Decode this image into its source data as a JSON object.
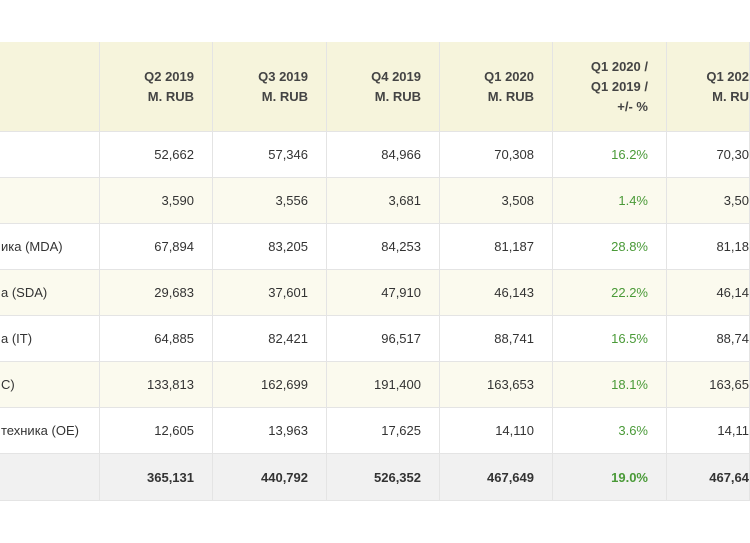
{
  "table": {
    "header": [
      "Q2 2019\nM. RUB",
      "Q3 2019\nM. RUB",
      "Q4 2019\nM. RUB",
      "Q1 2020\nM. RUB",
      "Q1 2020 /\nQ1 2019 /\n+/- %",
      "Q1 202\nM. RU"
    ],
    "rows": [
      {
        "cells": [
          "52,662",
          "57,346",
          "84,966",
          "70,308",
          "16.2%",
          "70,30"
        ]
      },
      {
        "cells": [
          "3,590",
          "3,556",
          "3,681",
          "3,508",
          "1.4%",
          "3,50"
        ]
      },
      {
        "label": "ика (MDA)",
        "cells": [
          "67,894",
          "83,205",
          "84,253",
          "81,187",
          "28.8%",
          "81,18"
        ]
      },
      {
        "label": "а (SDA)",
        "cells": [
          "29,683",
          "37,601",
          "47,910",
          "46,143",
          "22.2%",
          "46,14"
        ]
      },
      {
        "label": "а (IT)",
        "cells": [
          "64,885",
          "82,421",
          "96,517",
          "88,741",
          "16.5%",
          "88,74"
        ]
      },
      {
        "label": "C)",
        "cells": [
          "133,813",
          "162,699",
          "191,400",
          "163,653",
          "18.1%",
          "163,65"
        ]
      },
      {
        "label": "техника (OE)",
        "cells": [
          "12,605",
          "13,963",
          "17,625",
          "14,110",
          "3.6%",
          "14,11"
        ]
      },
      {
        "cells": [
          "365,131",
          "440,792",
          "526,352",
          "467,649",
          "19.0%",
          "467,64"
        ]
      }
    ]
  }
}
